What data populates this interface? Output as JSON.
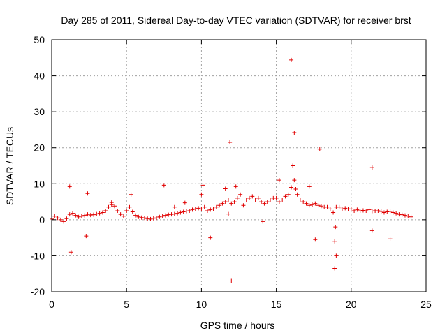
{
  "chart_data": {
    "type": "scatter",
    "title": "Day 285 of 2011, Sidereal Day-to-day VTEC variation (SDTVAR) for receiver brst",
    "xlabel": "GPS time / hours",
    "ylabel": "SDTVAR / TECUs",
    "xlim": [
      0,
      25
    ],
    "ylim": [
      -20,
      50
    ],
    "xticks": [
      "0",
      "5",
      "10",
      "15",
      "20",
      "25"
    ],
    "yticks": [
      "-20",
      "-10",
      "0",
      "10",
      "20",
      "30",
      "40",
      "50"
    ],
    "grid": true,
    "marker": "plus",
    "color": "#e00000",
    "series": [
      {
        "name": "SDTVAR",
        "x": [
          0.0,
          0.2,
          0.4,
          0.6,
          0.8,
          1.0,
          1.2,
          1.4,
          1.6,
          1.8,
          2.0,
          2.2,
          2.4,
          2.6,
          2.8,
          3.0,
          3.2,
          3.4,
          3.6,
          3.8,
          4.0,
          4.2,
          4.4,
          4.6,
          4.8,
          5.0,
          5.2,
          5.4,
          5.6,
          5.8,
          6.0,
          6.2,
          6.4,
          6.6,
          6.8,
          7.0,
          7.2,
          7.4,
          7.6,
          7.8,
          8.0,
          8.2,
          8.4,
          8.6,
          8.8,
          9.0,
          9.2,
          9.4,
          9.6,
          9.8,
          10.0,
          10.2,
          10.4,
          10.6,
          10.8,
          11.0,
          11.2,
          11.4,
          11.6,
          11.8,
          12.0,
          12.2,
          12.4,
          12.6,
          12.8,
          13.0,
          13.2,
          13.4,
          13.6,
          13.8,
          14.0,
          14.2,
          14.4,
          14.6,
          14.8,
          15.0,
          15.2,
          15.4,
          15.6,
          15.8,
          16.0,
          16.2,
          16.4,
          16.6,
          16.8,
          17.0,
          17.2,
          17.4,
          17.6,
          17.8,
          18.0,
          18.2,
          18.4,
          18.6,
          18.8,
          19.0,
          19.2,
          19.4,
          19.6,
          19.8,
          20.0,
          20.2,
          20.4,
          20.6,
          20.8,
          21.0,
          21.2,
          21.4,
          21.6,
          21.8,
          22.0,
          22.2,
          22.4,
          22.6,
          22.8,
          23.0,
          23.2,
          23.4,
          23.6,
          23.8,
          24.0,
          1.2,
          1.3,
          2.3,
          2.4,
          4.0,
          5.3,
          7.5,
          8.2,
          8.9,
          10.0,
          10.1,
          10.6,
          11.6,
          11.8,
          11.9,
          12.0,
          12.3,
          14.1,
          15.2,
          16.0,
          16.1,
          16.2,
          16.3,
          17.2,
          17.6,
          17.9,
          18.9,
          18.9,
          18.95,
          19.0,
          21.4,
          21.4,
          22.6
        ],
        "y": [
          0.2,
          1.0,
          0.5,
          0.0,
          -0.5,
          0.3,
          1.5,
          1.8,
          1.2,
          0.8,
          1.0,
          1.2,
          1.5,
          1.3,
          1.4,
          1.6,
          1.8,
          2.0,
          2.5,
          3.5,
          4.2,
          3.8,
          2.5,
          1.5,
          1.0,
          2.5,
          3.5,
          2.2,
          1.2,
          0.8,
          0.6,
          0.5,
          0.3,
          0.2,
          0.4,
          0.5,
          0.8,
          1.0,
          1.2,
          1.4,
          1.5,
          1.6,
          1.8,
          2.0,
          2.2,
          2.4,
          2.5,
          2.8,
          3.0,
          3.2,
          3.0,
          3.5,
          2.5,
          2.8,
          3.0,
          3.5,
          4.0,
          4.5,
          5.0,
          5.5,
          4.5,
          5.0,
          6.0,
          7.0,
          4.0,
          5.5,
          6.0,
          6.5,
          5.5,
          6.0,
          5.0,
          4.5,
          5.0,
          5.5,
          6.0,
          6.0,
          5.0,
          5.5,
          6.5,
          7.0,
          9.0,
          11.0,
          7.0,
          5.5,
          5.0,
          4.5,
          4.0,
          4.2,
          4.5,
          4.0,
          3.8,
          3.5,
          3.5,
          3.0,
          2.0,
          3.5,
          3.5,
          3.0,
          3.2,
          3.0,
          3.0,
          2.5,
          2.8,
          2.5,
          2.6,
          2.5,
          2.8,
          2.4,
          2.5,
          2.5,
          2.3,
          2.0,
          2.2,
          2.3,
          2.0,
          1.8,
          1.5,
          1.4,
          1.2,
          1.0,
          0.8,
          9.2,
          -9.0,
          -4.5,
          7.3,
          4.8,
          7.0,
          9.6,
          3.5,
          4.7,
          7.0,
          9.6,
          -5.0,
          8.6,
          1.6,
          21.5,
          -17.0,
          9.2,
          -0.5,
          11.0,
          44.4,
          15.0,
          24.2,
          8.5,
          9.2,
          -5.5,
          19.6,
          -13.5,
          -6.0,
          -2.0,
          -10.0,
          14.5,
          -3.0,
          -5.3
        ]
      }
    ]
  }
}
